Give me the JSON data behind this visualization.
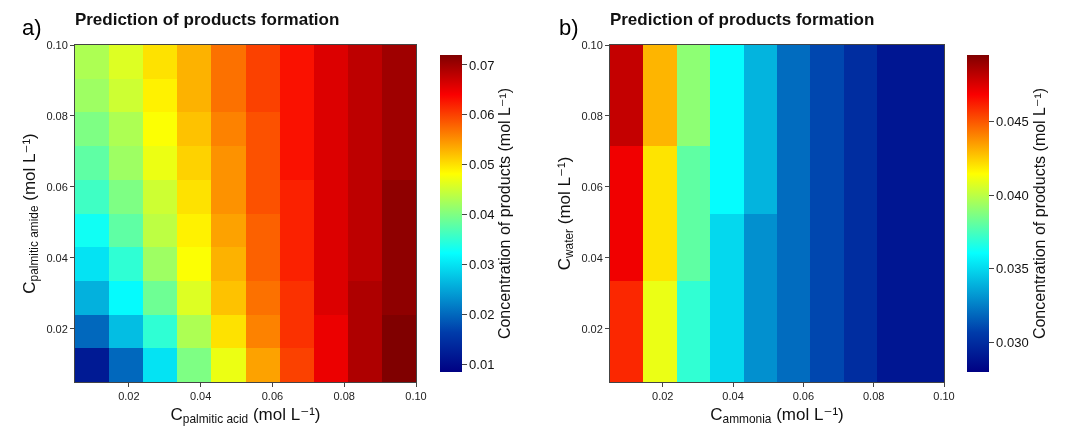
{
  "chart_data": [
    {
      "type": "heatmap",
      "title": "Prediction of products formation",
      "annotations": [
        "a)"
      ],
      "xlabel": "C$_{palmitic acid}$ (mol L⁻¹)",
      "ylabel": "C$_{palmitic amide}$ (mol L⁻¹)",
      "clabel": "Concentration of products (mol L⁻¹)",
      "xlim": [
        0.005,
        0.1
      ],
      "xticks": [
        0.02,
        0.04,
        0.06,
        0.08,
        {
          "value": 0.1,
          "label": "0.10"
        }
      ],
      "ylim": [
        0.005,
        0.1
      ],
      "yticks": [
        0.02,
        0.04,
        0.06,
        0.08,
        {
          "value": 0.1,
          "label": "0.10"
        }
      ],
      "clim": [
        0.0085,
        0.072
      ],
      "cticks": [
        0.01,
        0.02,
        0.03,
        0.04,
        0.05,
        0.06,
        0.07
      ],
      "cells": [
        [
          0.043,
          0.046,
          0.05,
          0.053,
          0.057,
          0.06,
          0.063,
          0.066,
          0.068,
          0.07
        ],
        [
          0.042,
          0.045,
          0.049,
          0.053,
          0.057,
          0.06,
          0.063,
          0.066,
          0.068,
          0.07
        ],
        [
          0.04,
          0.043,
          0.048,
          0.052,
          0.056,
          0.059,
          0.063,
          0.066,
          0.068,
          0.07
        ],
        [
          0.038,
          0.042,
          0.047,
          0.051,
          0.055,
          0.059,
          0.063,
          0.066,
          0.068,
          0.07
        ],
        [
          0.036,
          0.04,
          0.045,
          0.05,
          0.055,
          0.059,
          0.062,
          0.066,
          0.068,
          0.071
        ],
        [
          0.033,
          0.038,
          0.044,
          0.049,
          0.054,
          0.058,
          0.062,
          0.066,
          0.068,
          0.071
        ],
        [
          0.03,
          0.035,
          0.042,
          0.048,
          0.053,
          0.058,
          0.062,
          0.066,
          0.068,
          0.071
        ],
        [
          0.026,
          0.032,
          0.039,
          0.046,
          0.052,
          0.057,
          0.061,
          0.066,
          0.069,
          0.071
        ],
        [
          0.02,
          0.027,
          0.035,
          0.043,
          0.05,
          0.056,
          0.061,
          0.065,
          0.069,
          0.072
        ],
        [
          0.012,
          0.02,
          0.03,
          0.04,
          0.047,
          0.054,
          0.06,
          0.065,
          0.069,
          0.072
        ]
      ]
    },
    {
      "type": "heatmap",
      "title": "Prediction of products formation",
      "annotations": [
        "b)"
      ],
      "xlabel": "C$_{ammonia}$ (mol L⁻¹)",
      "ylabel": "C$_{water}$ (mol L⁻¹)",
      "clabel": "Concentration of products (mol L⁻¹)",
      "xlim": [
        0.005,
        0.1
      ],
      "xticks": [
        0.02,
        0.04,
        0.06,
        0.08,
        {
          "value": 0.1,
          "label": "0.10"
        }
      ],
      "ylim": [
        0.005,
        0.1
      ],
      "yticks": [
        0.02,
        0.04,
        0.06,
        0.08,
        {
          "value": 0.1,
          "label": "0.10"
        }
      ],
      "clim": [
        0.028,
        0.0495
      ],
      "cticks": [
        {
          "value": 0.03,
          "label": "0.030"
        },
        0.035,
        {
          "value": 0.04,
          "label": "0.040"
        },
        0.045
      ],
      "cells": [
        [
          0.048,
          0.043,
          0.039,
          0.036,
          0.034,
          0.032,
          0.031,
          0.03,
          0.029,
          0.029
        ],
        [
          0.048,
          0.043,
          0.039,
          0.036,
          0.034,
          0.032,
          0.031,
          0.03,
          0.029,
          0.029
        ],
        [
          0.048,
          0.043,
          0.039,
          0.036,
          0.034,
          0.032,
          0.031,
          0.03,
          0.029,
          0.029
        ],
        [
          0.047,
          0.042,
          0.038,
          0.036,
          0.034,
          0.032,
          0.031,
          0.03,
          0.029,
          0.029
        ],
        [
          0.047,
          0.042,
          0.038,
          0.036,
          0.034,
          0.032,
          0.031,
          0.03,
          0.029,
          0.029
        ],
        [
          0.047,
          0.042,
          0.038,
          0.035,
          0.033,
          0.032,
          0.031,
          0.03,
          0.029,
          0.029
        ],
        [
          0.047,
          0.042,
          0.038,
          0.035,
          0.033,
          0.032,
          0.031,
          0.03,
          0.029,
          0.029
        ],
        [
          0.046,
          0.041,
          0.037,
          0.035,
          0.033,
          0.032,
          0.031,
          0.03,
          0.029,
          0.029
        ],
        [
          0.046,
          0.041,
          0.037,
          0.035,
          0.033,
          0.032,
          0.031,
          0.03,
          0.029,
          0.029
        ],
        [
          0.046,
          0.041,
          0.037,
          0.035,
          0.033,
          0.032,
          0.031,
          0.03,
          0.029,
          0.029
        ]
      ]
    }
  ]
}
